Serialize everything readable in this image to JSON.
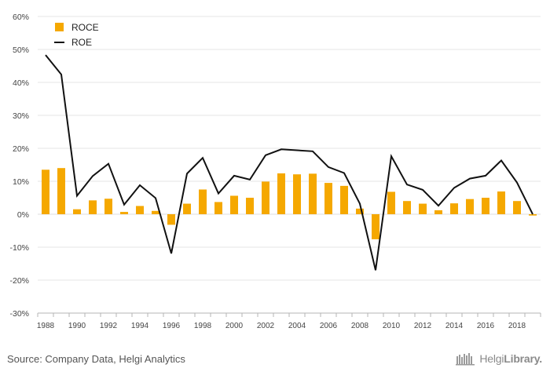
{
  "chart_data": {
    "type": "bar+line",
    "x": [
      1988,
      1989,
      1990,
      1991,
      1992,
      1993,
      1994,
      1995,
      1996,
      1997,
      1998,
      1999,
      2000,
      2001,
      2002,
      2003,
      2004,
      2005,
      2006,
      2007,
      2008,
      2009,
      2010,
      2011,
      2012,
      2013,
      2014,
      2015,
      2016,
      2017,
      2018,
      2019
    ],
    "x_tick_labels": [
      "1988",
      "1990",
      "1992",
      "1994",
      "1996",
      "1998",
      "2000",
      "2002",
      "2004",
      "2006",
      "2008",
      "2010",
      "2012",
      "2014",
      "2016",
      "2018"
    ],
    "y_tick_labels": [
      "60%",
      "50%",
      "40%",
      "30%",
      "20%",
      "10%",
      "0%",
      "-10%",
      "-20%",
      "-30%"
    ],
    "ylim": [
      -30,
      60
    ],
    "y_unit": "%",
    "grid": "horizontal",
    "legend_position": "top-left",
    "series": [
      {
        "name": "ROCE",
        "kind": "bar",
        "color": "#f5a800",
        "values": [
          13.5,
          14.0,
          1.5,
          4.2,
          4.7,
          0.7,
          2.5,
          1.0,
          -3.2,
          3.2,
          7.5,
          3.7,
          5.6,
          5.0,
          9.9,
          12.4,
          12.1,
          12.3,
          9.5,
          8.6,
          1.7,
          -7.6,
          6.8,
          4.0,
          3.2,
          1.2,
          3.3,
          4.6,
          5.0,
          6.9,
          4.0,
          -0.4
        ]
      },
      {
        "name": "ROE",
        "kind": "line",
        "color": "#111111",
        "values": [
          48.3,
          42.4,
          5.6,
          11.6,
          15.3,
          2.9,
          8.8,
          4.9,
          -11.9,
          12.3,
          17.1,
          6.3,
          11.7,
          10.5,
          17.9,
          19.7,
          19.4,
          19.1,
          14.3,
          12.5,
          3.2,
          -17.0,
          17.6,
          9.0,
          7.4,
          2.6,
          8.0,
          10.8,
          11.7,
          16.3,
          9.6,
          0.0
        ]
      }
    ]
  },
  "footer": {
    "source": "Source: Company Data, Helgi Analytics",
    "brand_regular": "Helgi",
    "brand_bold": "Library.",
    "brand_icon": "bookshelf-icon"
  }
}
